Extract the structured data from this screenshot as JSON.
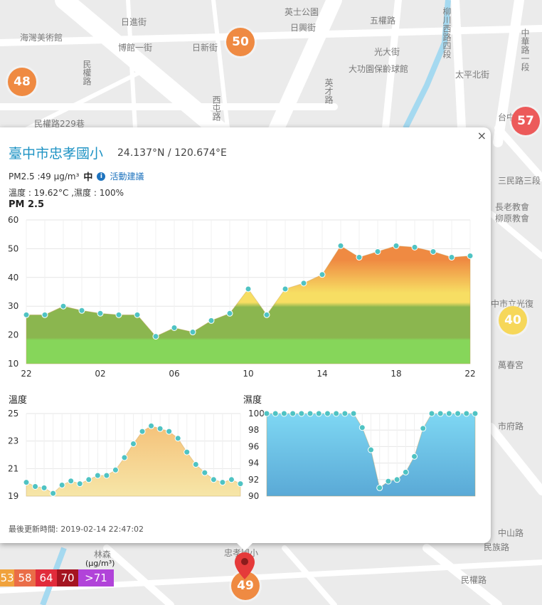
{
  "map": {
    "labels": [
      {
        "text": "英士公園",
        "style": "left:400px;top:8px;"
      },
      {
        "text": "日進街",
        "style": "left:170px;top:22px;"
      },
      {
        "text": "海灣美術館",
        "style": "left:28px;top:44px;"
      },
      {
        "text": "博館一街",
        "style": "left:166px;top:58px;"
      },
      {
        "text": "日新街",
        "style": "left:270px;top:58px;"
      },
      {
        "text": "日興街",
        "style": "left:408px;top:30px;"
      },
      {
        "text": "五權路",
        "style": "left:520px;top:20px;"
      },
      {
        "text": "光大街",
        "style": "left:526px;top:64px;"
      },
      {
        "text": "太平北街",
        "style": "left:640px;top:96px;"
      },
      {
        "text": "大功園保齡球館",
        "style": "left:490px;top:88px;"
      },
      {
        "text": "民權路229巷",
        "style": "left:48px;top:165px;"
      },
      {
        "text": "台中",
        "style": "left:700px;top:156px;"
      },
      {
        "text": "三民路三段",
        "style": "left:700px;top:245px;"
      },
      {
        "text": "長老教會",
        "style": "left:696px;top:282px;"
      },
      {
        "text": "柳原教會",
        "style": "left:696px;top:298px;"
      },
      {
        "text": "中市立光復",
        "style": "left:690px;top:418px;"
      },
      {
        "text": "萬春宮",
        "style": "left:700px;top:504px;"
      },
      {
        "text": "市府路",
        "style": "left:700px;top:590px;"
      },
      {
        "text": "中山路",
        "style": "left:700px;top:740px;"
      },
      {
        "text": "民族路",
        "style": "left:680px;top:760px;"
      },
      {
        "text": "民權路",
        "style": "left:648px;top:806px;"
      },
      {
        "text": "忠孝國小",
        "style": "left:315px;top:768px;"
      },
      {
        "text": "林森",
        "style": "left:132px;top:770px;"
      }
    ],
    "vlabels": [
      {
        "text": "民權路",
        "style": "left:114px;top:84px;"
      },
      {
        "text": "西屯路",
        "style": "left:296px;top:134px;"
      },
      {
        "text": "柳川西路四段",
        "style": "left:620px;top:10px;"
      },
      {
        "text": "中華路一段",
        "style": "left:730px;top:40px;"
      },
      {
        "text": "英才路",
        "style": "left:454px;top:110px;"
      }
    ],
    "markers": [
      {
        "value": "50",
        "color": "#ef8a42",
        "style": "left:318px;top:39px;"
      },
      {
        "value": "48",
        "color": "#ef8a42",
        "style": "left:11px;top:95px;"
      },
      {
        "value": "57",
        "color": "#ec5a5a",
        "style": "left:719px;top:150px;"
      },
      {
        "value": "40",
        "color": "#f6d75a",
        "style": "left:701px;top:430px;"
      },
      {
        "value": "49",
        "color": "#ef8a42",
        "style": "left:325px;top:803px;"
      }
    ]
  },
  "popup": {
    "close_label": "×",
    "station": "臺中市忠孝國小",
    "coords": "24.137°N / 120.674°E",
    "pm_text": "PM2.5 :49 μg/m³",
    "pm_level": "中",
    "info_icon": "i",
    "advice_link": "活動建議",
    "env_text": "溫度 : 19.62°C ,濕度 : 100%",
    "pm_chart_title": "PM 2.5",
    "temp_title": "溫度",
    "humidity_title": "濕度",
    "updated": "最後更新時間: 2019-02-14 22:47:02"
  },
  "legend": {
    "unit": "(μg/m³)",
    "items": [
      {
        "label": "53",
        "color": "#f0a23c",
        "w": 20
      },
      {
        "label": "58",
        "color": "#ea6d48",
        "w": 30
      },
      {
        "label": "64",
        "color": "#e12b3b",
        "w": 30
      },
      {
        "label": "70",
        "color": "#a51420",
        "w": 30
      },
      {
        "label": ">71",
        "color": "#b143d9",
        "w": 50
      }
    ]
  },
  "chart_data": [
    {
      "type": "area",
      "title": "PM 2.5",
      "x_tick_labels": [
        "22",
        "02",
        "06",
        "10",
        "14",
        "18",
        "22"
      ],
      "ylim": [
        10,
        60
      ],
      "y_ticks": [
        10,
        20,
        30,
        40,
        50,
        60
      ],
      "grid": true,
      "values": [
        27,
        27,
        30,
        28.5,
        27.5,
        27,
        27,
        19.5,
        22.5,
        21,
        25,
        27.5,
        36,
        27,
        36,
        38,
        41,
        51,
        47,
        49,
        51,
        50.5,
        49,
        47,
        47.5
      ],
      "colors": {
        "low": "#86d65a",
        "mid": "#f7de63",
        "high": "#ef8a42",
        "point": "#4fc3c3"
      }
    },
    {
      "type": "area",
      "title": "溫度",
      "ylim": [
        19,
        25
      ],
      "y_ticks": [
        19,
        21,
        23,
        25
      ],
      "grid": true,
      "values": [
        20,
        19.7,
        19.6,
        19.2,
        19.8,
        20.1,
        19.9,
        20.2,
        20.5,
        20.5,
        20.9,
        21.8,
        22.8,
        23.7,
        24.1,
        23.9,
        23.7,
        23.2,
        22.2,
        21.3,
        20.7,
        20.2,
        20,
        20.2,
        19.9
      ],
      "colors": {
        "fill_top": "#f5c27a",
        "fill_bottom": "#f6e6a8",
        "point": "#4fc3c3"
      }
    },
    {
      "type": "area",
      "title": "濕度",
      "ylim": [
        90,
        100
      ],
      "y_ticks": [
        90,
        92,
        94,
        96,
        98,
        100
      ],
      "grid": true,
      "values": [
        100,
        100,
        100,
        100,
        100,
        100,
        100,
        100,
        100,
        100,
        100,
        98.3,
        95.6,
        91,
        91.8,
        92,
        92.9,
        94.8,
        98.2,
        100,
        100,
        100,
        100,
        100,
        100
      ],
      "colors": {
        "fill_top": "#7ed7f3",
        "fill_bottom": "#5aa9d6",
        "point": "#4fc3c3"
      }
    }
  ]
}
